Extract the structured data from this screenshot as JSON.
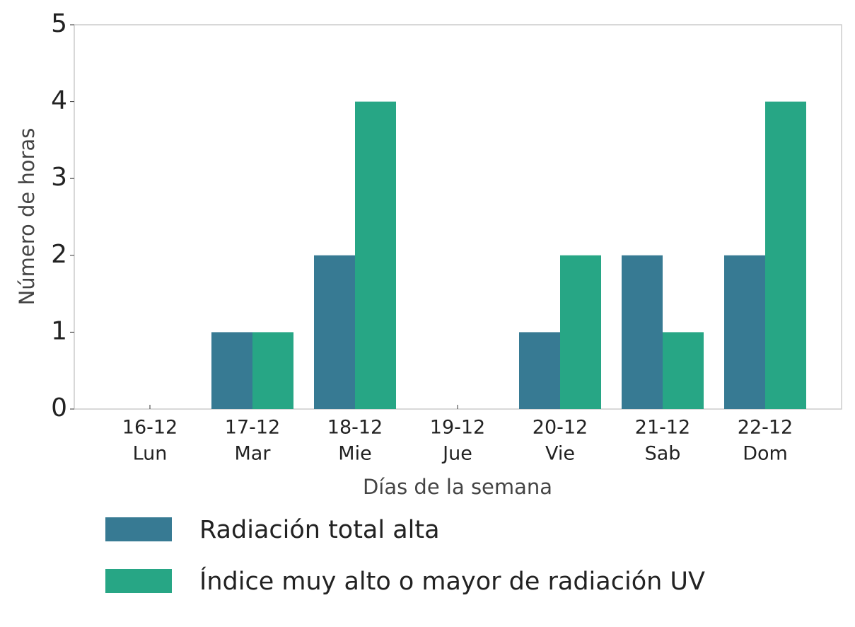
{
  "chart_data": {
    "type": "bar",
    "x_label": "Días de la semana",
    "y_label": "Número de horas",
    "categories": [
      [
        "16-12",
        "Lun"
      ],
      [
        "17-12",
        "Mar"
      ],
      [
        "18-12",
        "Mie"
      ],
      [
        "19-12",
        "Jue"
      ],
      [
        "20-12",
        "Vie"
      ],
      [
        "21-12",
        "Sab"
      ],
      [
        "22-12",
        "Dom"
      ]
    ],
    "series": [
      {
        "name": "Radiación total alta",
        "color": "#377a93",
        "values": [
          0,
          1,
          2,
          0,
          1,
          2,
          2
        ]
      },
      {
        "name": "Índice muy alto o mayor de radiación UV",
        "color": "#27a685",
        "values": [
          0,
          1,
          4,
          0,
          2,
          1,
          4
        ]
      }
    ],
    "ylim": [
      0,
      5
    ],
    "yticks": [
      0,
      1,
      2,
      3,
      4,
      5
    ],
    "grid": false,
    "legend": "bottom"
  }
}
